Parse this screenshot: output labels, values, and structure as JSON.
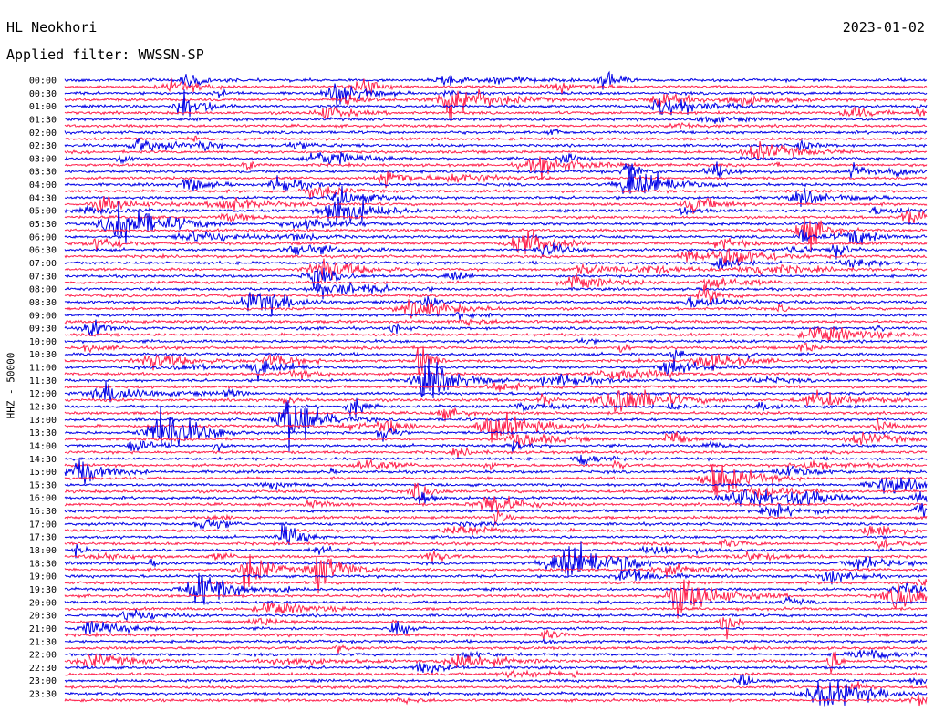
{
  "header": {
    "station": "HL Neokhori",
    "date": "2023-01-02",
    "filter": "Applied filter: WWSSN-SP"
  },
  "channel_label": "HHZ - 50000",
  "colors": {
    "blue": "#0000e6",
    "red": "#ff1f4b"
  },
  "chart_data": {
    "type": "line",
    "title": "HL Neokhori",
    "subtitle": "Applied filter: WWSSN-SP",
    "date": "2023-01-02",
    "ylabel": "HHZ - 50000",
    "y_tick_labels": [
      "00:00",
      "00:30",
      "01:00",
      "01:30",
      "02:00",
      "02:30",
      "03:00",
      "03:30",
      "04:00",
      "04:30",
      "05:00",
      "05:30",
      "06:00",
      "06:30",
      "07:00",
      "07:30",
      "08:00",
      "08:30",
      "09:00",
      "09:30",
      "10:00",
      "10:30",
      "11:00",
      "11:30",
      "12:00",
      "12:30",
      "13:00",
      "13:30",
      "14:00",
      "14:30",
      "15:00",
      "15:30",
      "16:00",
      "16:30",
      "17:00",
      "17:30",
      "18:00",
      "18:30",
      "19:00",
      "19:30",
      "20:00",
      "20:30",
      "21:00",
      "21:30",
      "22:00",
      "22:30",
      "23:00",
      "23:30"
    ],
    "x_range_minutes": [
      0,
      15
    ],
    "trace_colors": [
      "#0000e6",
      "#ff1f4b"
    ],
    "grid": false,
    "notes": "Helicorder display: one trace per 15 minutes, alternating blue/red"
  }
}
